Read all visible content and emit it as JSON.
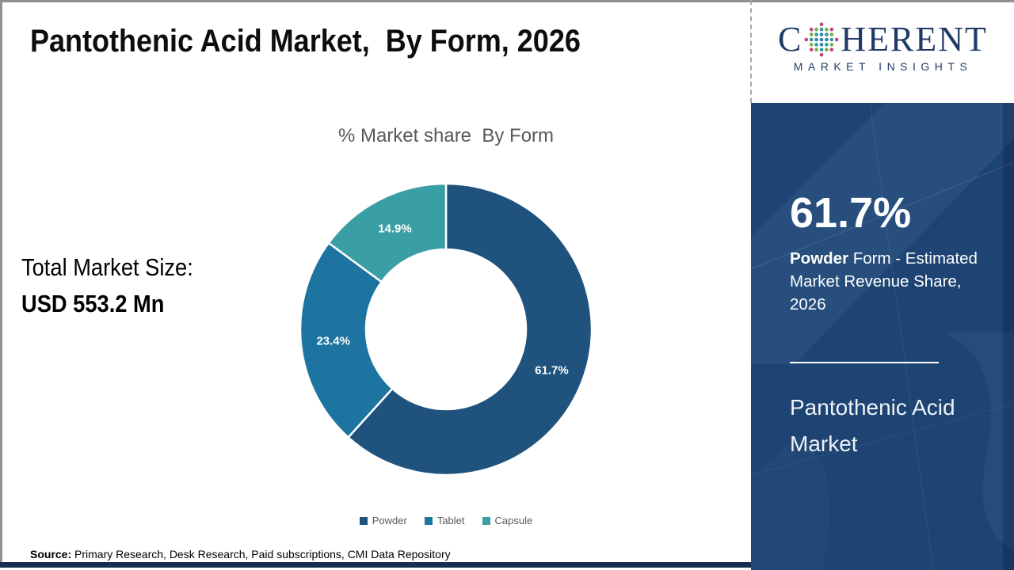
{
  "header": {
    "title": "Pantothenic Acid Market,  By Form, 2026"
  },
  "logo": {
    "brand_prefix": "C",
    "brand_suffix": "HERENT",
    "tagline": "MARKET INSIGHTS",
    "navy": "#1f3a68",
    "globe_colors": {
      "outer": "#c2407f",
      "mid_green": "#76b043",
      "mid_teal": "#2a9a9f",
      "inner": "#367fa9"
    }
  },
  "left_panel": {
    "total_label": "Total Market Size:",
    "total_value": "USD 553.2 Mn"
  },
  "chart_data": {
    "type": "donut",
    "title": "% Market share  By Form",
    "categories": [
      "Powder",
      "Tablet",
      "Capsule"
    ],
    "values": [
      61.7,
      23.4,
      14.9
    ],
    "data_labels": [
      "61.7%",
      "23.4%",
      "14.9%"
    ],
    "colors": [
      "#1f537e",
      "#1e74a0",
      "#3a9fa4"
    ],
    "start_angle_deg": 0,
    "direction": "clockwise",
    "inner_radius_ratio": 0.55,
    "legend_position": "bottom"
  },
  "sidebar": {
    "background": "#1d4472",
    "highlight_value": "61.7%",
    "highlight_lead": "Powder",
    "highlight_rest": " Form - Estimated Market Revenue Share, 2026",
    "market_name": "Pantothenic Acid Market"
  },
  "footer": {
    "source_label": "Source:",
    "source_text": " Primary Research, Desk Research, Paid subscriptions, CMI Data Repository"
  }
}
